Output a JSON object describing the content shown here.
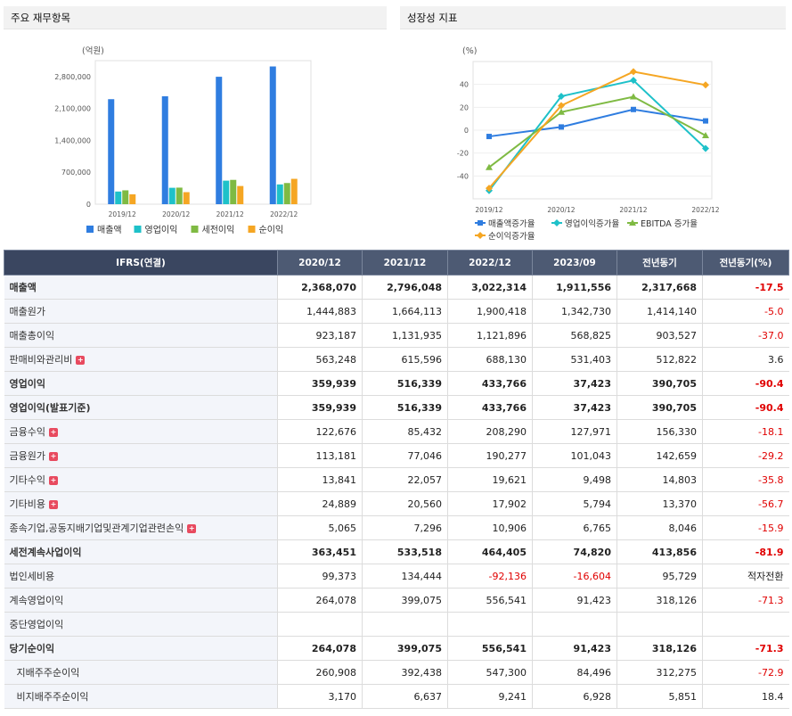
{
  "panel1": {
    "title": "주요 재무항목"
  },
  "panel2": {
    "title": "성장성 지표"
  },
  "chart_data": [
    {
      "type": "bar",
      "unit_label": "(억원)",
      "categories": [
        "2019/12",
        "2020/12",
        "2021/12",
        "2022/12"
      ],
      "yticks": [
        "2,800,000",
        "2,100,000",
        "1,400,000",
        "700,000",
        "0"
      ],
      "ylim": [
        0,
        3150000
      ],
      "series": [
        {
          "name": "매출액",
          "color": "#2f7de0",
          "values": [
            2304009,
            2368070,
            2796048,
            3022314
          ]
        },
        {
          "name": "영업이익",
          "color": "#1ec1c9",
          "values": [
            277685,
            359939,
            516339,
            433766
          ]
        },
        {
          "name": "세전이익",
          "color": "#7fba43",
          "values": [
            304322,
            363451,
            533518,
            464405
          ]
        },
        {
          "name": "순이익",
          "color": "#f5a623",
          "values": [
            217389,
            264078,
            399075,
            556541
          ]
        }
      ]
    },
    {
      "type": "line",
      "unit_label": "(%)",
      "categories": [
        "2019/12",
        "2020/12",
        "2021/12",
        "2022/12"
      ],
      "yticks": [
        "40",
        "20",
        "0",
        "-20",
        "-40"
      ],
      "ylim": [
        -60,
        60
      ],
      "series": [
        {
          "name": "매출액증가율",
          "color": "#2f7de0",
          "marker": "square",
          "values": [
            -5.5,
            2.8,
            18.1,
            8.1
          ]
        },
        {
          "name": "영업이익증가율",
          "color": "#1ec1c9",
          "marker": "diamond",
          "values": [
            -52.8,
            29.6,
            43.5,
            -16.0
          ]
        },
        {
          "name": "EBITDA 증가율",
          "color": "#7fba43",
          "marker": "triangle",
          "values": [
            -32.5,
            15.8,
            29.2,
            -4.7
          ]
        },
        {
          "name": "순이익증가율",
          "color": "#f5a623",
          "marker": "diamond",
          "values": [
            -50.7,
            21.5,
            51.1,
            39.5
          ]
        }
      ]
    }
  ],
  "table": {
    "headers": [
      "IFRS(연결)",
      "2020/12",
      "2021/12",
      "2022/12",
      "2023/09",
      "전년동기",
      "전년동기(%)"
    ],
    "rows": [
      {
        "label": "매출액",
        "bold": true,
        "plus": false,
        "values": [
          "2,368,070",
          "2,796,048",
          "3,022,314",
          "1,911,556",
          "2,317,668",
          "-17.5"
        ]
      },
      {
        "label": "매출원가",
        "bold": false,
        "plus": false,
        "values": [
          "1,444,883",
          "1,664,113",
          "1,900,418",
          "1,342,730",
          "1,414,140",
          "-5.0"
        ]
      },
      {
        "label": "매출총이익",
        "bold": false,
        "plus": false,
        "values": [
          "923,187",
          "1,131,935",
          "1,121,896",
          "568,825",
          "903,527",
          "-37.0"
        ]
      },
      {
        "label": "판매비와관리비",
        "bold": false,
        "plus": true,
        "values": [
          "563,248",
          "615,596",
          "688,130",
          "531,403",
          "512,822",
          "3.6"
        ]
      },
      {
        "label": "영업이익",
        "bold": true,
        "plus": false,
        "values": [
          "359,939",
          "516,339",
          "433,766",
          "37,423",
          "390,705",
          "-90.4"
        ]
      },
      {
        "label": "영업이익(발표기준)",
        "bold": true,
        "plus": false,
        "values": [
          "359,939",
          "516,339",
          "433,766",
          "37,423",
          "390,705",
          "-90.4"
        ]
      },
      {
        "label": "금융수익",
        "bold": false,
        "plus": true,
        "values": [
          "122,676",
          "85,432",
          "208,290",
          "127,971",
          "156,330",
          "-18.1"
        ]
      },
      {
        "label": "금융원가",
        "bold": false,
        "plus": true,
        "values": [
          "113,181",
          "77,046",
          "190,277",
          "101,043",
          "142,659",
          "-29.2"
        ]
      },
      {
        "label": "기타수익",
        "bold": false,
        "plus": true,
        "values": [
          "13,841",
          "22,057",
          "19,621",
          "9,498",
          "14,803",
          "-35.8"
        ]
      },
      {
        "label": "기타비용",
        "bold": false,
        "plus": true,
        "values": [
          "24,889",
          "20,560",
          "17,902",
          "5,794",
          "13,370",
          "-56.7"
        ]
      },
      {
        "label": "종속기업,공동지배기업및관계기업관련손익",
        "bold": false,
        "plus": true,
        "values": [
          "5,065",
          "7,296",
          "10,906",
          "6,765",
          "8,046",
          "-15.9"
        ]
      },
      {
        "label": "세전계속사업이익",
        "bold": true,
        "plus": false,
        "values": [
          "363,451",
          "533,518",
          "464,405",
          "74,820",
          "413,856",
          "-81.9"
        ]
      },
      {
        "label": "법인세비용",
        "bold": false,
        "plus": false,
        "values": [
          "99,373",
          "134,444",
          "-92,136",
          "-16,604",
          "95,729",
          "적자전환"
        ]
      },
      {
        "label": "계속영업이익",
        "bold": false,
        "plus": false,
        "values": [
          "264,078",
          "399,075",
          "556,541",
          "91,423",
          "318,126",
          "-71.3"
        ]
      },
      {
        "label": "중단영업이익",
        "bold": false,
        "plus": false,
        "values": [
          "",
          "",
          "",
          "",
          "",
          ""
        ]
      },
      {
        "label": "당기순이익",
        "bold": true,
        "plus": false,
        "values": [
          "264,078",
          "399,075",
          "556,541",
          "91,423",
          "318,126",
          "-71.3"
        ]
      },
      {
        "label": "지배주주순이익",
        "bold": false,
        "plus": false,
        "sub": true,
        "values": [
          "260,908",
          "392,438",
          "547,300",
          "84,496",
          "312,275",
          "-72.9"
        ]
      },
      {
        "label": "비지배주주순이익",
        "bold": false,
        "plus": false,
        "sub": true,
        "values": [
          "3,170",
          "6,637",
          "9,241",
          "6,928",
          "5,851",
          "18.4"
        ]
      }
    ]
  }
}
